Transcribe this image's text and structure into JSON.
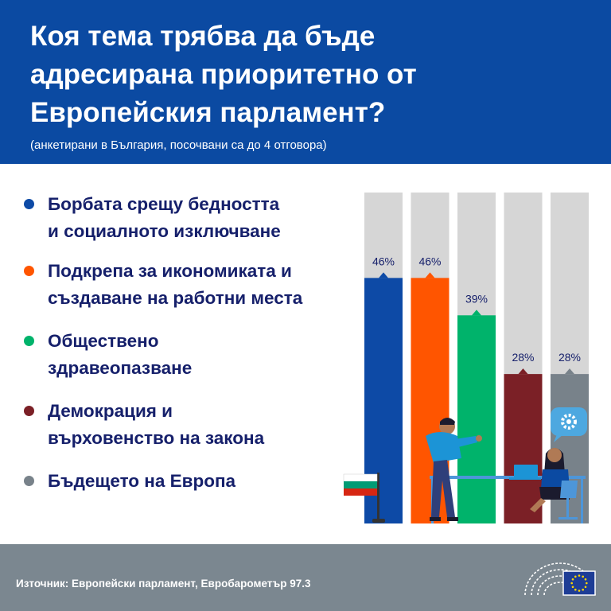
{
  "header": {
    "title": "Коя тема трябва да бъде\nадресирана приоритетно от\nЕвропейския парламент?",
    "subtitle": "(анкетирани в България, посочвани са до 4 отговора)",
    "background": "#0b4aa2"
  },
  "chart_data": {
    "type": "bar",
    "title": "Коя тема трябва да бъде адресирана приоритетно от Европейския парламент?",
    "categories": [
      "Борбата срещу бедността\nи социалното изключване",
      "Подкрепа за икономиката и\nсъздаване на работни места",
      "Обществено\nздравеопазване",
      "Демокрация и\nвърховенство на закона",
      "Бъдещето на Европа"
    ],
    "values": [
      46,
      46,
      39,
      28,
      28
    ],
    "value_labels": [
      "46%",
      "46%",
      "39%",
      "28%",
      "28%"
    ],
    "colors": [
      "#0d4aa6",
      "#ff5500",
      "#00b36b",
      "#7b2026",
      "#78828a"
    ],
    "track_color": "#d6d6d6",
    "ylim": [
      0,
      62
    ],
    "xlabel": "",
    "ylabel": "",
    "legend_position": "left"
  },
  "footer": {
    "source": "Източник: Европейски парламент, Евробарометър 97.3"
  },
  "icons": [
    "bulgaria-flag-icon",
    "person-pointing-illustration",
    "woman-at-laptop-illustration",
    "gear-speech-bubble-icon",
    "european-parliament-logo",
    "eu-flag-icon"
  ]
}
